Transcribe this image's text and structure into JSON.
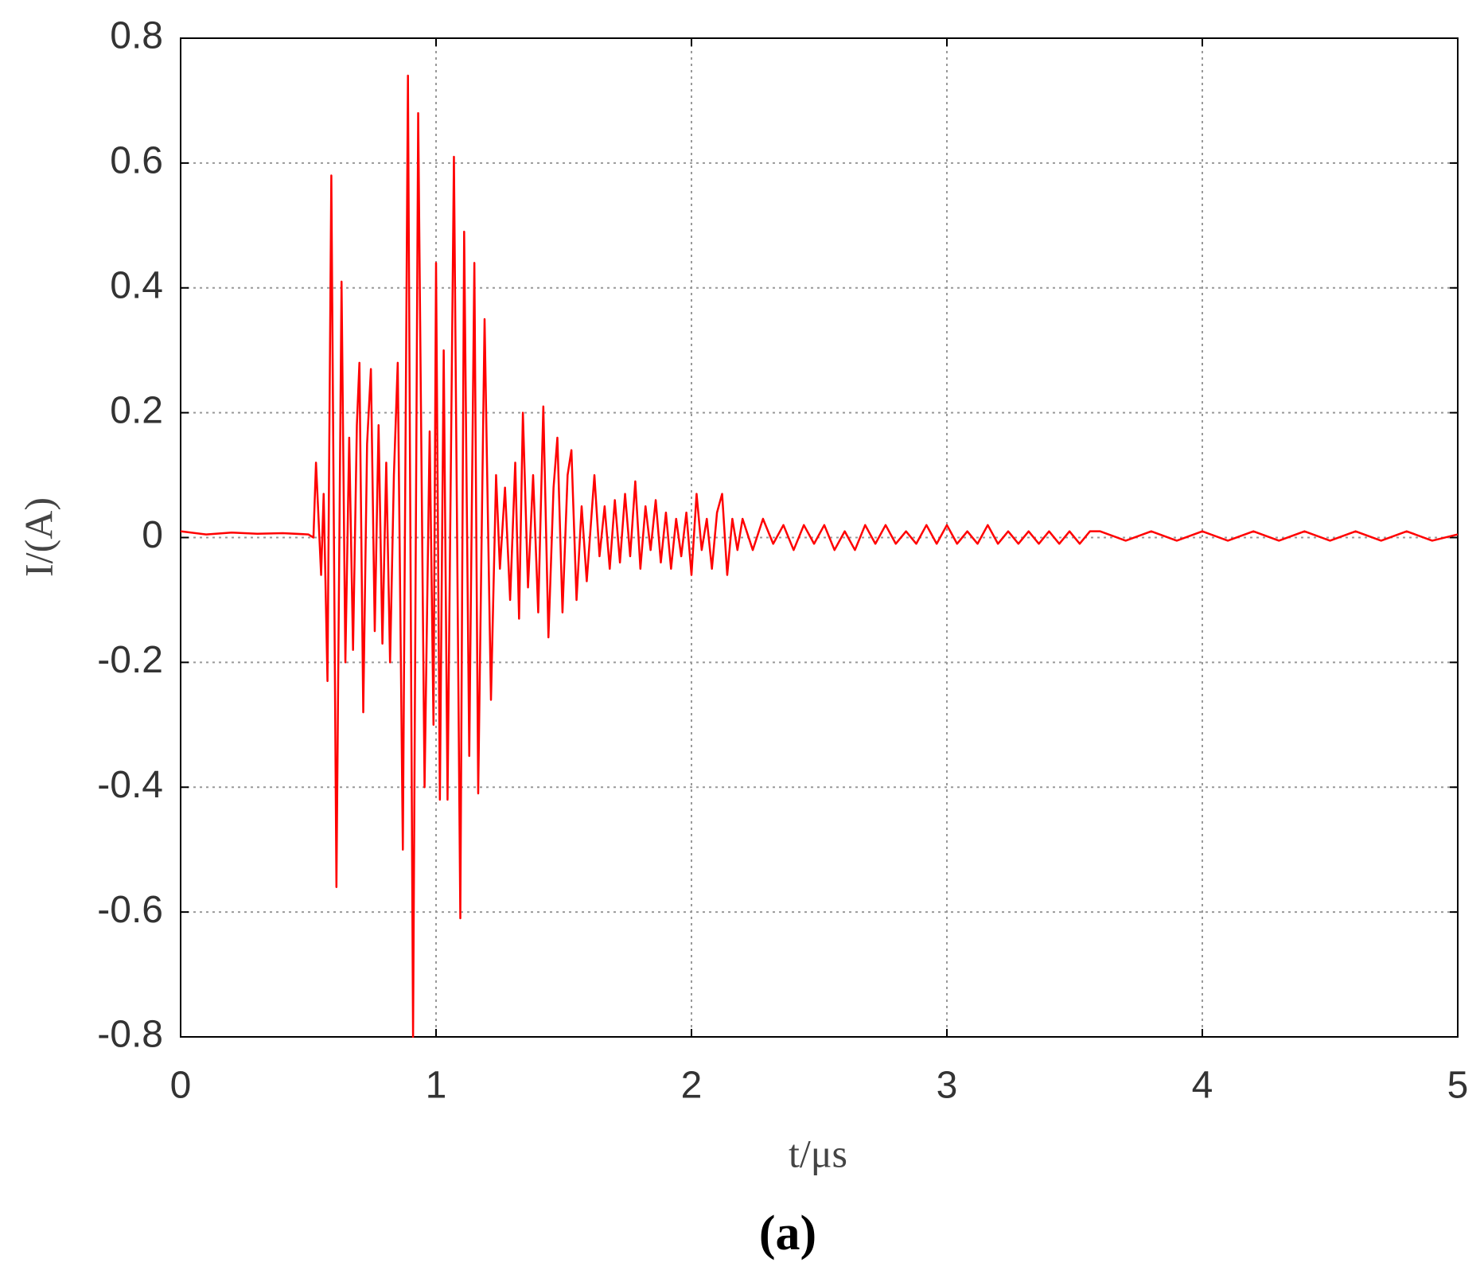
{
  "chart_data": {
    "type": "line",
    "caption": "(a)",
    "xlabel": "t/μs",
    "ylabel": "I/(A)",
    "xlim": [
      0,
      5
    ],
    "xticks": [
      0,
      1,
      2,
      3,
      4,
      5
    ],
    "ylim": [
      -0.8,
      0.8
    ],
    "yticks": [
      -0.8,
      -0.6,
      -0.4,
      -0.2,
      0,
      0.2,
      0.4,
      0.6,
      0.8
    ],
    "grid": true,
    "series": [
      {
        "name": "I",
        "color": "#ff0000",
        "x": [
          0,
          0.1,
          0.2,
          0.3,
          0.4,
          0.5,
          0.52,
          0.53,
          0.55,
          0.56,
          0.575,
          0.59,
          0.61,
          0.63,
          0.645,
          0.66,
          0.675,
          0.69,
          0.7,
          0.715,
          0.73,
          0.745,
          0.76,
          0.775,
          0.79,
          0.805,
          0.82,
          0.835,
          0.85,
          0.87,
          0.89,
          0.91,
          0.93,
          0.955,
          0.975,
          0.99,
          1.0,
          1.015,
          1.03,
          1.045,
          1.07,
          1.095,
          1.11,
          1.13,
          1.15,
          1.165,
          1.19,
          1.215,
          1.235,
          1.25,
          1.27,
          1.29,
          1.31,
          1.325,
          1.34,
          1.36,
          1.38,
          1.4,
          1.42,
          1.44,
          1.46,
          1.475,
          1.495,
          1.515,
          1.53,
          1.55,
          1.57,
          1.59,
          1.62,
          1.64,
          1.66,
          1.68,
          1.7,
          1.72,
          1.74,
          1.76,
          1.78,
          1.8,
          1.82,
          1.84,
          1.86,
          1.88,
          1.9,
          1.92,
          1.94,
          1.96,
          1.98,
          2.0,
          2.02,
          2.04,
          2.06,
          2.08,
          2.1,
          2.12,
          2.14,
          2.16,
          2.18,
          2.2,
          2.24,
          2.28,
          2.32,
          2.36,
          2.4,
          2.44,
          2.48,
          2.52,
          2.56,
          2.6,
          2.64,
          2.68,
          2.72,
          2.76,
          2.8,
          2.84,
          2.88,
          2.92,
          2.96,
          3.0,
          3.04,
          3.08,
          3.12,
          3.16,
          3.2,
          3.24,
          3.28,
          3.32,
          3.36,
          3.4,
          3.44,
          3.48,
          3.52,
          3.56,
          3.6,
          3.7,
          3.8,
          3.9,
          4.0,
          4.1,
          4.2,
          4.3,
          4.4,
          4.5,
          4.6,
          4.7,
          4.8,
          4.9,
          5.0
        ],
        "values": [
          0.01,
          0.005,
          0.008,
          0.006,
          0.007,
          0.005,
          0.0,
          0.12,
          -0.06,
          0.07,
          -0.23,
          0.58,
          -0.56,
          0.41,
          -0.2,
          0.16,
          -0.18,
          0.18,
          0.28,
          -0.28,
          0.15,
          0.27,
          -0.15,
          0.18,
          -0.17,
          0.12,
          -0.2,
          0.1,
          0.28,
          -0.5,
          0.74,
          -0.8,
          0.68,
          -0.4,
          0.17,
          -0.3,
          0.44,
          -0.42,
          0.3,
          -0.42,
          0.61,
          -0.61,
          0.49,
          -0.35,
          0.44,
          -0.41,
          0.35,
          -0.26,
          0.1,
          -0.05,
          0.08,
          -0.1,
          0.12,
          -0.13,
          0.2,
          -0.08,
          0.1,
          -0.12,
          0.21,
          -0.16,
          0.08,
          0.16,
          -0.12,
          0.1,
          0.14,
          -0.1,
          0.05,
          -0.07,
          0.1,
          -0.03,
          0.05,
          -0.05,
          0.06,
          -0.04,
          0.07,
          -0.03,
          0.09,
          -0.05,
          0.05,
          -0.02,
          0.06,
          -0.04,
          0.04,
          -0.05,
          0.03,
          -0.03,
          0.04,
          -0.06,
          0.07,
          -0.02,
          0.03,
          -0.05,
          0.04,
          0.07,
          -0.06,
          0.03,
          -0.02,
          0.03,
          -0.02,
          0.03,
          -0.01,
          0.02,
          -0.02,
          0.02,
          -0.01,
          0.02,
          -0.02,
          0.01,
          -0.02,
          0.02,
          -0.01,
          0.02,
          -0.01,
          0.01,
          -0.01,
          0.02,
          -0.01,
          0.02,
          -0.01,
          0.01,
          -0.01,
          0.02,
          -0.01,
          0.01,
          -0.01,
          0.01,
          -0.01,
          0.01,
          -0.01,
          0.01,
          -0.01,
          0.01,
          0.01,
          -0.005,
          0.01,
          -0.005,
          0.01,
          -0.005,
          0.01,
          -0.005,
          0.01,
          -0.005,
          0.01,
          -0.005,
          0.01,
          -0.005,
          0.005
        ]
      }
    ]
  }
}
